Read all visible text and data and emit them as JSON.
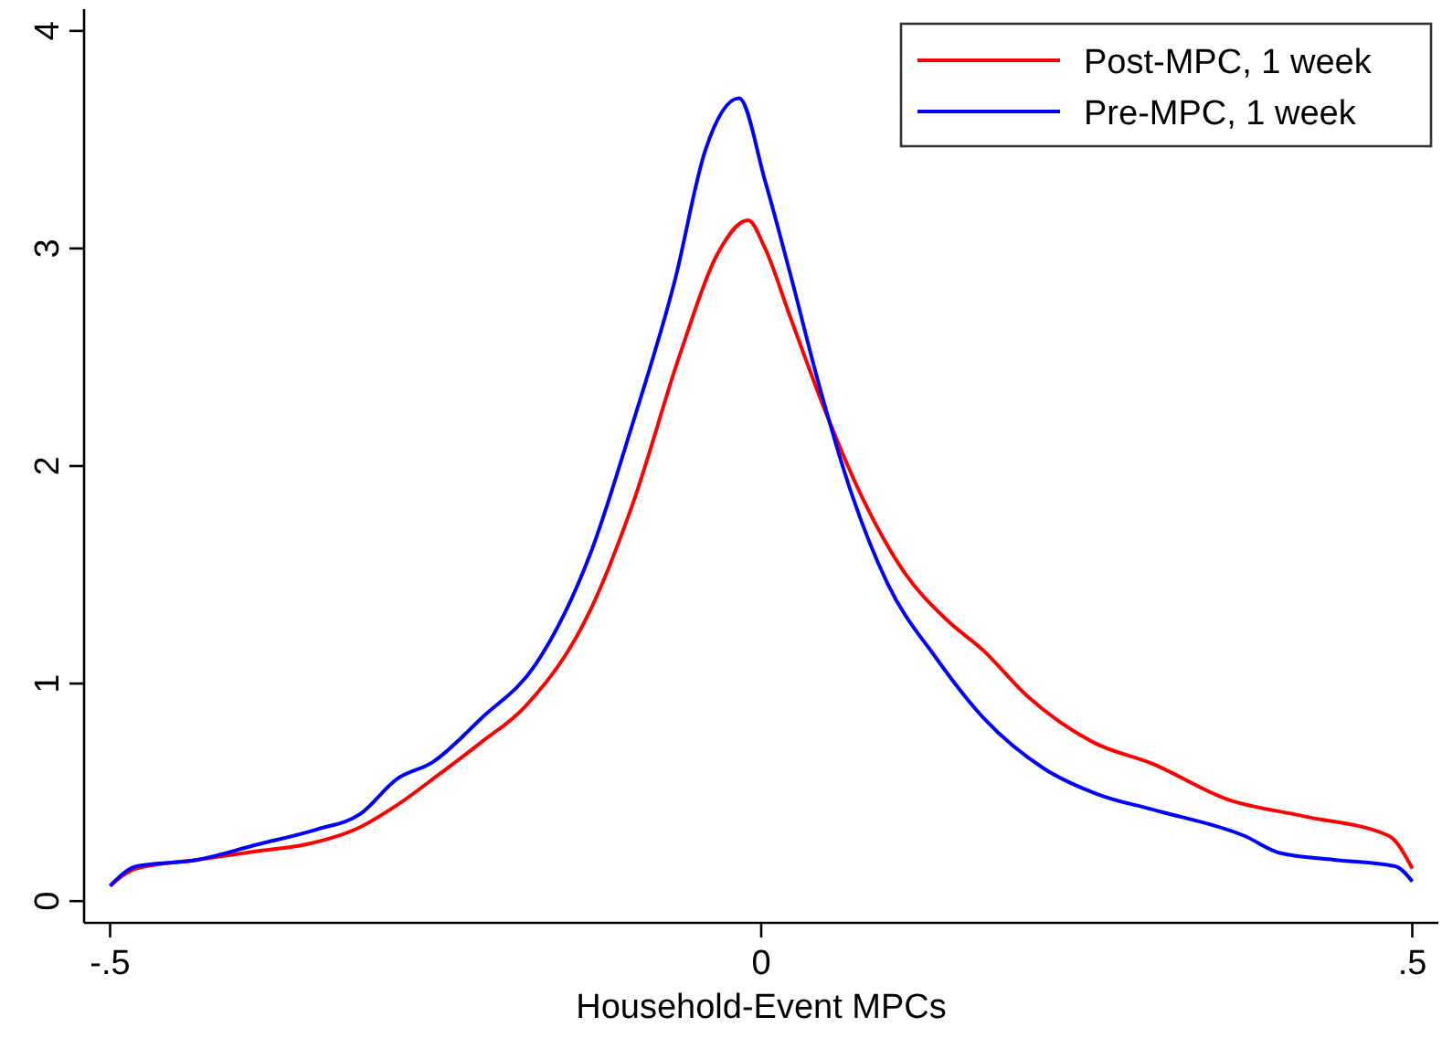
{
  "chart_data": {
    "type": "line",
    "xlabel": "Household-Event MPCs",
    "xlim": [
      -0.52,
      0.52
    ],
    "ylim": [
      -0.1,
      4.1
    ],
    "xticks": [
      {
        "value": -0.5,
        "label": "-.5"
      },
      {
        "value": 0,
        "label": "0"
      },
      {
        "value": 0.5,
        "label": ".5"
      }
    ],
    "yticks": [
      0,
      1,
      2,
      3,
      4
    ],
    "grid": false,
    "legend": "top right",
    "line_style": "solid",
    "marker": "none",
    "series": [
      {
        "name": "Post-MPC, 1 week",
        "color": "#ff0000",
        "x": [
          -0.5,
          -0.48,
          -0.433,
          -0.387,
          -0.35,
          -0.308,
          -0.28,
          -0.248,
          -0.215,
          -0.182,
          -0.131,
          -0.099,
          -0.062,
          -0.034,
          -0.01,
          0.003,
          0.022,
          0.05,
          0.078,
          0.11,
          0.143,
          0.171,
          0.203,
          0.255,
          0.301,
          0.357,
          0.417,
          0.482,
          0.5
        ],
        "values": [
          0.07,
          0.15,
          0.19,
          0.23,
          0.26,
          0.34,
          0.44,
          0.58,
          0.73,
          0.89,
          1.34,
          1.82,
          2.52,
          2.97,
          3.13,
          3.0,
          2.69,
          2.24,
          1.85,
          1.51,
          1.29,
          1.15,
          0.95,
          0.73,
          0.63,
          0.47,
          0.39,
          0.3,
          0.15
        ]
      },
      {
        "name": "Pre-MPC, 1 week",
        "color": "#0000ff",
        "x": [
          -0.5,
          -0.48,
          -0.433,
          -0.387,
          -0.341,
          -0.308,
          -0.28,
          -0.252,
          -0.215,
          -0.173,
          -0.131,
          -0.099,
          -0.066,
          -0.043,
          -0.017,
          0.003,
          0.022,
          0.045,
          0.069,
          0.097,
          0.134,
          0.171,
          0.217,
          0.259,
          0.301,
          0.371,
          0.399,
          0.44,
          0.487,
          0.5
        ],
        "values": [
          0.07,
          0.16,
          0.19,
          0.26,
          0.33,
          0.4,
          0.56,
          0.64,
          0.84,
          1.09,
          1.6,
          2.19,
          2.86,
          3.45,
          3.69,
          3.31,
          2.89,
          2.36,
          1.88,
          1.46,
          1.12,
          0.84,
          0.61,
          0.49,
          0.42,
          0.3,
          0.22,
          0.19,
          0.16,
          0.09
        ]
      }
    ]
  }
}
